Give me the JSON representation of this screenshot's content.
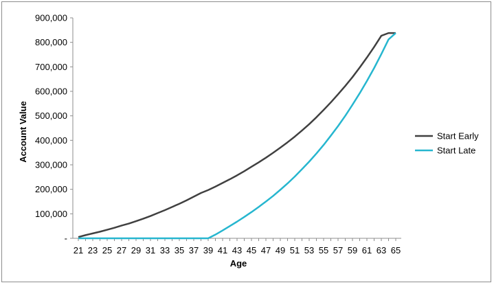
{
  "chart_data": {
    "type": "line",
    "title": "",
    "xlabel": "Age",
    "ylabel": "Account Value",
    "ylim": [
      0,
      900000
    ],
    "yticks": [
      0,
      100000,
      200000,
      300000,
      400000,
      500000,
      600000,
      700000,
      800000,
      900000
    ],
    "ytick_labels": [
      "-",
      "100,000",
      "200,000",
      "300,000",
      "400,000",
      "500,000",
      "600,000",
      "700,000",
      "800,000",
      "900,000"
    ],
    "xticks": [
      21,
      23,
      25,
      27,
      29,
      31,
      33,
      35,
      37,
      39,
      41,
      43,
      45,
      47,
      49,
      51,
      53,
      55,
      57,
      59,
      61,
      63,
      65
    ],
    "x": [
      21,
      22,
      23,
      24,
      25,
      26,
      27,
      28,
      29,
      30,
      31,
      32,
      33,
      34,
      35,
      36,
      37,
      38,
      39,
      40,
      41,
      42,
      43,
      44,
      45,
      46,
      47,
      48,
      49,
      50,
      51,
      52,
      53,
      54,
      55,
      56,
      57,
      58,
      59,
      60,
      61,
      62,
      63,
      64,
      65
    ],
    "grid": false,
    "legend_position": "right",
    "colors": {
      "Start Early": "#404040",
      "Start Late": "#26b6cf"
    },
    "series": [
      {
        "name": "Start Early",
        "values": [
          5000,
          13000,
          20000,
          27000,
          35000,
          43000,
          52000,
          60000,
          70000,
          80000,
          91000,
          103000,
          115000,
          128000,
          141000,
          155000,
          170000,
          185000,
          197000,
          211000,
          226000,
          241000,
          257000,
          274000,
          292000,
          310000,
          329000,
          349000,
          370000,
          392000,
          415000,
          440000,
          466000,
          494000,
          524000,
          555000,
          588000,
          622000,
          658000,
          697000,
          738000,
          781000,
          827000,
          838000,
          838000
        ]
      },
      {
        "name": "Start Late",
        "values": [
          0,
          0,
          0,
          0,
          0,
          0,
          0,
          0,
          0,
          0,
          0,
          0,
          0,
          0,
          0,
          0,
          0,
          0,
          0,
          15000,
          32000,
          50000,
          68000,
          87000,
          107000,
          128000,
          150000,
          173000,
          198000,
          224000,
          252000,
          282000,
          313000,
          346000,
          381000,
          419000,
          458000,
          500000,
          545000,
          592000,
          642000,
          695000,
          752000,
          812000,
          838000
        ]
      }
    ]
  }
}
